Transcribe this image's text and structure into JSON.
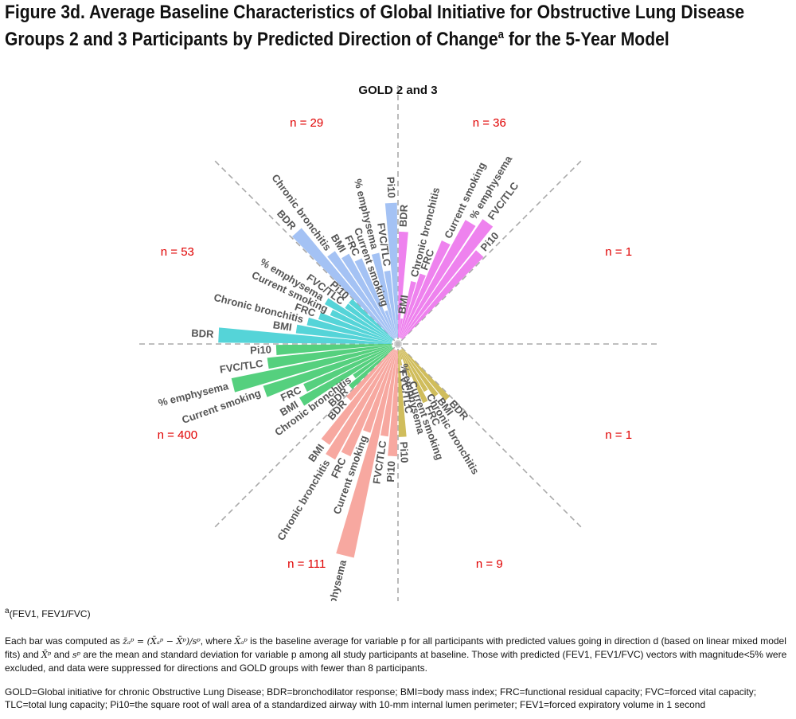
{
  "figure": {
    "title": "Figure 3d. Average Baseline Characteristics of Global Initiative for Obstructive Lung Disease Groups 2 and 3 Participants by Predicted Direction of Change",
    "title_superscript": "a",
    "title_suffix": " for the 5-Year Model"
  },
  "colors": {
    "sector_pink": "#ee82ee",
    "sector_blue": "#a4c2f4",
    "sector_cyan": "#55d4d8",
    "sector_green": "#55d07e",
    "sector_salmon": "#f7a8a0",
    "sector_olive": "#d0bd5c",
    "n_label": "#e00000",
    "divider": "#aaaaaa",
    "bar_label": "#555555"
  },
  "chart_data": {
    "type": "bar",
    "layout": "radial",
    "title": "GOLD 2 and 3",
    "value_scale": "standardized difference (range approx. -0.3 to 1.8)",
    "sectors": [
      {
        "id": "s1",
        "n_label": "n =  36",
        "color": "sector_pink",
        "categories": [
          "BDR",
          "BMI",
          "Chronic bronchitis",
          "FRC",
          "Current smoking",
          "% emphysema",
          "FVC/TLC",
          "Pi10"
        ],
        "values": [
          0.55,
          0.1,
          0.3,
          0.35,
          0.55,
          0.7,
          0.75,
          0.6
        ]
      },
      {
        "id": "s2",
        "n_label": "n =  1",
        "color": "sector_pink",
        "categories": [],
        "values": []
      },
      {
        "id": "s3",
        "n_label": "n =  1",
        "color": "sector_olive",
        "categories": [],
        "values": []
      },
      {
        "id": "s4",
        "n_label": "n =  9",
        "color": "sector_olive",
        "categories": [
          "BDR",
          "BMI",
          "Chronic bronchitis",
          "FRC",
          "Current smoking",
          "% emphysema",
          "FVC/TLC",
          "Pi10"
        ],
        "values": [
          0.35,
          0.3,
          0.25,
          0.3,
          0.15,
          0.05,
          0.08,
          0.45
        ]
      },
      {
        "id": "s5",
        "n_label": "n =  111",
        "color": "sector_salmon",
        "categories": [
          "Pi10",
          "FVC/TLC",
          "% emphysema",
          "Current smoking",
          "FRC",
          "Chronic bronchitis",
          "BMI",
          "BDR"
        ],
        "values": [
          0.55,
          0.45,
          1.1,
          0.45,
          0.6,
          0.65,
          0.6,
          0.35
        ]
      },
      {
        "id": "s6",
        "n_label": "n =  400",
        "color": "sector_green",
        "categories": [
          "BDR",
          "Chronic bronchitis",
          "BMI",
          "FRC",
          "Current smoking",
          "% emphysema",
          "FVC/TLC",
          "Pi10"
        ],
        "values": [
          0.3,
          0.25,
          0.55,
          0.5,
          0.7,
          0.85,
          0.65,
          0.6
        ]
      },
      {
        "id": "s7",
        "n_label": "n =  53",
        "color": "sector_cyan",
        "categories": [
          "BDR",
          "BMI",
          "Chronic bronchitis",
          "FRC",
          "Current smoking",
          "% emphysema",
          "FVC/TLC",
          "Pi10"
        ],
        "values": [
          0.9,
          0.5,
          0.45,
          0.4,
          0.35,
          0.4,
          0.3,
          0.3
        ]
      },
      {
        "id": "s8",
        "n_label": "n =  29",
        "color": "sector_blue",
        "categories": [
          "BDR",
          "Chronic bronchitis",
          "BMI",
          "FRC",
          "Current smoking",
          "% emphysema",
          "FVC/TLC",
          "Pi10"
        ],
        "values": [
          0.75,
          0.55,
          0.5,
          0.45,
          0.15,
          0.45,
          0.35,
          0.7
        ]
      }
    ]
  },
  "footnotes": {
    "a_mark": "a",
    "a_text": "(FEV1, FEV1/FVC)",
    "bar_p1": "Each bar was computed as",
    "bar_formula1": "z̄ₐᵖ = (X̄ₐᵖ − X̄ᵖ)/sᵖ",
    "bar_p2": ", where",
    "bar_formula2": "X̄ₐᵖ",
    "bar_p3": " is the baseline average for variable p for all participants with predicted values going in direction d (based on linear mixed model fits) and",
    "bar_formula3": "X̄ᵖ",
    "bar_p4": " and",
    "bar_formula4": "sᵖ",
    "bar_p5": " are the mean and standard deviation for variable p among all study participants at baseline.  Those with predicted (FEV1, FEV1/FVC) vectors with magnitude<5% were excluded, and data were suppressed for directions and GOLD groups with fewer than 8 participants.",
    "abbreviations": "GOLD=Global initiative for chronic Obstructive Lung Disease; BDR=bronchodilator response; BMI=body mass index; FRC=functional residual capacity; FVC=forced vital capacity; TLC=total lung capacity; Pi10=the square root of wall area of a standardized airway with 10-mm internal lumen perimeter; FEV1=forced expiratory volume in 1 second"
  }
}
